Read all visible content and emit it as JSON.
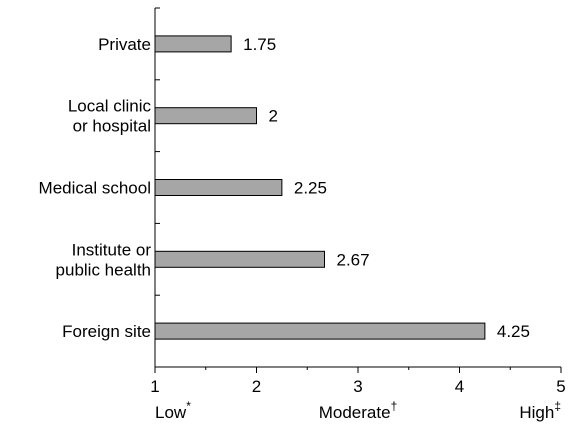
{
  "chart_data": {
    "type": "bar",
    "orientation": "horizontal",
    "categories": [
      [
        "Private"
      ],
      [
        "Local clinic",
        "or hospital"
      ],
      [
        "Medical school"
      ],
      [
        "Institute or",
        "public health"
      ],
      [
        "Foreign site"
      ]
    ],
    "values": [
      1.75,
      2,
      2.25,
      2.67,
      4.25
    ],
    "value_labels": [
      "1.75",
      "2",
      "2.25",
      "2.67",
      "4.25"
    ],
    "xlim": [
      1,
      5
    ],
    "xticks": [
      "1",
      "2",
      "3",
      "4",
      "5"
    ],
    "scale_labels": [
      {
        "text": "Low",
        "mark": "*",
        "at": 1
      },
      {
        "text": "Moderate",
        "mark": "†",
        "at": 3
      },
      {
        "text": "High",
        "mark": "‡",
        "at": 5
      }
    ],
    "bar_color": "#a6a6a6",
    "grid": false
  }
}
